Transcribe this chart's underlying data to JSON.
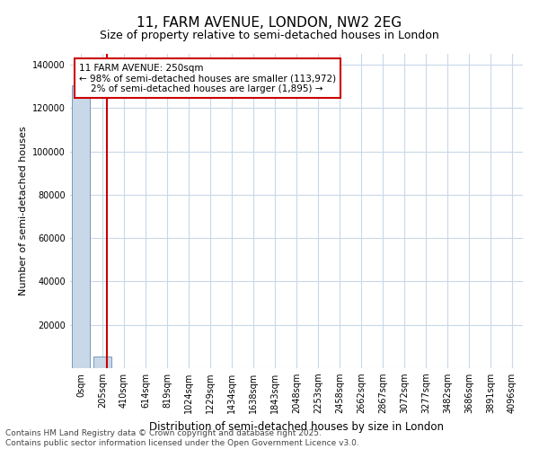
{
  "title": "11, FARM AVENUE, LONDON, NW2 2EG",
  "subtitle": "Size of property relative to semi-detached houses in London",
  "xlabel": "Distribution of semi-detached houses by size in London",
  "ylabel": "Number of semi-detached houses",
  "bar_categories": [
    "0sqm",
    "205sqm",
    "410sqm",
    "614sqm",
    "819sqm",
    "1024sqm",
    "1229sqm",
    "1434sqm",
    "1638sqm",
    "1843sqm",
    "2048sqm",
    "2253sqm",
    "2458sqm",
    "2662sqm",
    "2867sqm",
    "3072sqm",
    "3277sqm",
    "3482sqm",
    "3686sqm",
    "3891sqm",
    "4096sqm"
  ],
  "bar_values": [
    130500,
    5200,
    0,
    0,
    0,
    0,
    0,
    0,
    0,
    0,
    0,
    0,
    0,
    0,
    0,
    0,
    0,
    0,
    0,
    0,
    0
  ],
  "bar_color": "#c8d8e8",
  "bar_edge_color": "#7799bb",
  "property_line_x": 1.22,
  "property_line_color": "#cc0000",
  "annotation_line1": "11 FARM AVENUE: 250sqm",
  "annotation_line2": "← 98% of semi-detached houses are smaller (113,972)",
  "annotation_line3": "    2% of semi-detached houses are larger (1,895) →",
  "annotation_box_color": "#cc0000",
  "ylim": [
    0,
    145000
  ],
  "yticks": [
    0,
    20000,
    40000,
    60000,
    80000,
    100000,
    120000,
    140000
  ],
  "bg_color": "#ffffff",
  "grid_color": "#c8d8ea",
  "footer_text": "Contains HM Land Registry data © Crown copyright and database right 2025.\nContains public sector information licensed under the Open Government Licence v3.0.",
  "title_fontsize": 11,
  "subtitle_fontsize": 9,
  "ylabel_fontsize": 8,
  "xlabel_fontsize": 8.5,
  "tick_fontsize": 7,
  "annotation_fontsize": 7.5,
  "footer_fontsize": 6.5
}
